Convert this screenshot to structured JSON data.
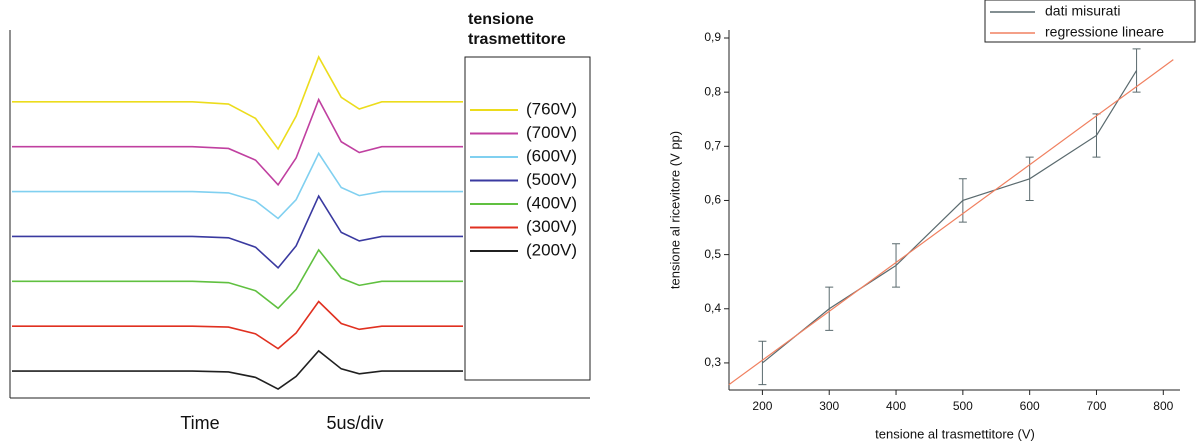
{
  "chart_data": [
    {
      "type": "line",
      "legend_title": [
        "tensione",
        "trasmettitore"
      ],
      "annotations": [
        "Time",
        "5us/div"
      ],
      "x": [
        0,
        2,
        4,
        4.8,
        5.4,
        5.9,
        6.3,
        6.8,
        7.3,
        7.7,
        8.2,
        10
      ],
      "xlim": [
        0,
        10
      ],
      "ylim": [
        -0.6,
        7.6
      ],
      "series": [
        {
          "name": "(760V)",
          "color": "#ecdc1c",
          "values": [
            6,
            6,
            6,
            5.95,
            5.63,
            4.95,
            5.68,
            7,
            6.1,
            5.84,
            6,
            6
          ]
        },
        {
          "name": "(700V)",
          "color": "#c040a0",
          "values": [
            5,
            5,
            5,
            4.96,
            4.7,
            4.15,
            4.75,
            6.05,
            5.11,
            4.87,
            5,
            5
          ]
        },
        {
          "name": "(600V)",
          "color": "#80d0f0",
          "values": [
            4,
            4,
            4,
            3.97,
            3.79,
            3.4,
            3.82,
            4.85,
            4.09,
            3.91,
            4,
            4
          ]
        },
        {
          "name": "(500V)",
          "color": "#3a3aa0",
          "values": [
            3,
            3,
            3,
            2.97,
            2.76,
            2.3,
            2.79,
            3.9,
            3.09,
            2.9,
            3,
            3
          ]
        },
        {
          "name": "(400V)",
          "color": "#60c040",
          "values": [
            2,
            2,
            2,
            1.97,
            1.79,
            1.4,
            1.82,
            2.7,
            2.07,
            1.91,
            2,
            2
          ]
        },
        {
          "name": "(300V)",
          "color": "#e03020",
          "values": [
            1,
            1,
            1,
            0.98,
            0.83,
            0.5,
            0.85,
            1.55,
            1.06,
            0.93,
            1,
            1
          ]
        },
        {
          "name": "(200V)",
          "color": "#202020",
          "values": [
            0,
            0,
            0,
            -0.02,
            -0.14,
            -0.4,
            -0.12,
            0.45,
            0.05,
            -0.06,
            0,
            0
          ]
        }
      ]
    },
    {
      "type": "line",
      "xlabel": "tensione al trasmettitore (V)",
      "ylabel": "tensione al ricevitore (V pp)",
      "xlim": [
        150,
        825
      ],
      "ylim": [
        0.25,
        0.9
      ],
      "xticks": [
        200,
        300,
        400,
        500,
        600,
        700,
        800
      ],
      "yticks": [
        {
          "value": 0.3,
          "label": "0,3"
        },
        {
          "value": 0.4,
          "label": "0,4"
        },
        {
          "value": 0.5,
          "label": "0,5"
        },
        {
          "value": 0.6,
          "label": "0,6"
        },
        {
          "value": 0.7,
          "label": "0,7"
        },
        {
          "value": 0.8,
          "label": "0,8"
        },
        {
          "value": 0.9,
          "label": "0,9"
        }
      ],
      "series": [
        {
          "name": "dati misurati",
          "color": "#5a6a6e",
          "x": [
            200,
            300,
            400,
            500,
            600,
            700,
            760
          ],
          "values": [
            0.3,
            0.4,
            0.48,
            0.6,
            0.64,
            0.72,
            0.84
          ],
          "errors": [
            0.04,
            0.04,
            0.04,
            0.04,
            0.04,
            0.04,
            0.04
          ]
        },
        {
          "name": "regressione lineare",
          "color": "#f08060",
          "x": [
            150,
            815
          ],
          "values": [
            0.26,
            0.86
          ]
        }
      ]
    }
  ]
}
